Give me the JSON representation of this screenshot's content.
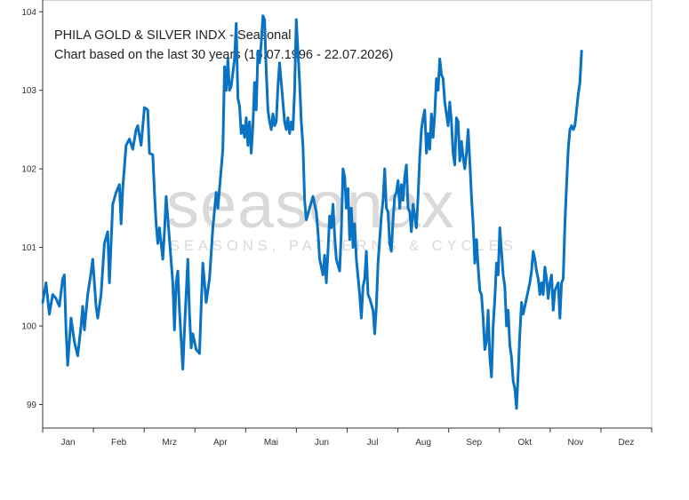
{
  "chart_data": {
    "type": "line",
    "title": "PHILA GOLD & SILVER INDX - Seasonal",
    "subtitle": "Chart based on the last 30 years (16.07.1996 - 22.07.2026)",
    "watermark": {
      "brand": "seasonax",
      "tagline": "SEASONS, PATTERNS & CYCLES"
    },
    "xlabel": "",
    "ylabel": "",
    "x_tick_labels": [
      "Jan",
      "Feb",
      "Mrz",
      "Apr",
      "Mai",
      "Jun",
      "Jul",
      "Aug",
      "Sep",
      "Okt",
      "Nov",
      "Dez"
    ],
    "y_ticks": [
      99,
      100,
      101,
      102,
      103,
      104
    ],
    "ylim": [
      98.7,
      104.15
    ],
    "xlim": [
      0,
      365
    ],
    "grid": false,
    "line_color": "#0a72c2",
    "series": [
      {
        "values": [
          [
            0,
            100.3
          ],
          [
            2,
            100.55
          ],
          [
            4,
            100.15
          ],
          [
            6,
            100.4
          ],
          [
            8,
            100.35
          ],
          [
            10,
            100.25
          ],
          [
            12,
            100.6
          ],
          [
            13,
            100.65
          ],
          [
            14,
            99.95
          ],
          [
            15,
            99.5
          ],
          [
            17,
            100.1
          ],
          [
            19,
            99.8
          ],
          [
            21,
            99.62
          ],
          [
            23,
            100.0
          ],
          [
            24,
            100.25
          ],
          [
            25,
            99.95
          ],
          [
            27,
            100.4
          ],
          [
            29,
            100.68
          ],
          [
            30,
            100.85
          ],
          [
            32,
            100.25
          ],
          [
            33,
            100.1
          ],
          [
            35,
            100.4
          ],
          [
            37,
            101.05
          ],
          [
            39,
            101.2
          ],
          [
            40,
            100.55
          ],
          [
            42,
            101.55
          ],
          [
            44,
            101.7
          ],
          [
            46,
            101.8
          ],
          [
            47,
            101.3
          ],
          [
            48,
            101.75
          ],
          [
            50,
            102.3
          ],
          [
            52,
            102.38
          ],
          [
            54,
            102.25
          ],
          [
            56,
            102.5
          ],
          [
            57,
            102.55
          ],
          [
            59,
            102.3
          ],
          [
            61,
            102.78
          ],
          [
            63,
            102.75
          ],
          [
            64,
            102.2
          ],
          [
            66,
            102.18
          ],
          [
            67,
            101.7
          ],
          [
            68,
            101.3
          ],
          [
            69,
            101.05
          ],
          [
            70,
            101.25
          ],
          [
            72,
            100.85
          ],
          [
            73,
            101.2
          ],
          [
            74,
            101.65
          ],
          [
            76,
            101.1
          ],
          [
            78,
            100.55
          ],
          [
            79,
            99.95
          ],
          [
            80,
            100.55
          ],
          [
            81,
            100.7
          ],
          [
            82,
            100.2
          ],
          [
            84,
            99.45
          ],
          [
            85,
            99.95
          ],
          [
            86,
            100.4
          ],
          [
            87,
            100.85
          ],
          [
            88,
            100.15
          ],
          [
            89,
            99.72
          ],
          [
            90,
            99.9
          ],
          [
            92,
            99.7
          ],
          [
            94,
            99.65
          ],
          [
            95,
            100.25
          ],
          [
            96,
            100.8
          ],
          [
            98,
            100.3
          ],
          [
            100,
            100.6
          ],
          [
            102,
            101.25
          ],
          [
            104,
            101.7
          ],
          [
            105,
            101.5
          ],
          [
            106,
            101.75
          ],
          [
            108,
            102.25
          ],
          [
            109,
            103.3
          ],
          [
            110,
            103.0
          ],
          [
            111,
            103.4
          ],
          [
            112,
            103.0
          ],
          [
            113,
            103.05
          ],
          [
            115,
            103.4
          ],
          [
            116,
            103.85
          ],
          [
            117,
            102.9
          ],
          [
            118,
            102.8
          ],
          [
            119,
            102.45
          ],
          [
            120,
            102.55
          ],
          [
            121,
            102.4
          ],
          [
            122,
            102.65
          ],
          [
            123,
            102.3
          ],
          [
            124,
            102.6
          ],
          [
            125,
            102.2
          ],
          [
            126,
            102.55
          ],
          [
            127,
            103.1
          ],
          [
            128,
            102.75
          ],
          [
            129,
            103.5
          ],
          [
            130,
            103.35
          ],
          [
            131,
            103.6
          ],
          [
            132,
            103.95
          ],
          [
            133,
            103.9
          ],
          [
            134,
            103.25
          ],
          [
            135,
            102.75
          ],
          [
            136,
            102.6
          ],
          [
            137,
            102.5
          ],
          [
            138,
            102.7
          ],
          [
            139,
            102.55
          ],
          [
            140,
            102.6
          ],
          [
            141,
            103.05
          ],
          [
            142,
            103.35
          ],
          [
            143,
            103.1
          ],
          [
            144,
            102.85
          ],
          [
            145,
            102.6
          ],
          [
            146,
            102.5
          ],
          [
            147,
            102.65
          ],
          [
            148,
            102.45
          ],
          [
            149,
            102.6
          ],
          [
            150,
            102.5
          ],
          [
            151,
            103.0
          ],
          [
            152,
            103.9
          ],
          [
            153,
            103.5
          ],
          [
            154,
            103.1
          ],
          [
            155,
            102.6
          ],
          [
            156,
            102.3
          ],
          [
            157,
            101.6
          ],
          [
            158,
            101.35
          ],
          [
            160,
            101.5
          ],
          [
            162,
            101.65
          ],
          [
            164,
            101.45
          ],
          [
            165,
            101.2
          ],
          [
            166,
            100.85
          ],
          [
            168,
            100.65
          ],
          [
            169,
            100.9
          ],
          [
            170,
            100.55
          ],
          [
            171,
            100.95
          ],
          [
            172,
            101.4
          ],
          [
            173,
            101.25
          ],
          [
            174,
            101.55
          ],
          [
            175,
            101.15
          ],
          [
            176,
            100.85
          ],
          [
            178,
            100.7
          ],
          [
            179,
            101.2
          ],
          [
            180,
            102.0
          ],
          [
            181,
            101.9
          ],
          [
            182,
            101.5
          ],
          [
            183,
            101.75
          ],
          [
            184,
            101.1
          ],
          [
            185,
            101.5
          ],
          [
            186,
            101.0
          ],
          [
            187,
            101.3
          ],
          [
            188,
            100.85
          ],
          [
            190,
            100.4
          ],
          [
            191,
            100.1
          ],
          [
            192,
            100.5
          ],
          [
            193,
            100.6
          ],
          [
            194,
            100.95
          ],
          [
            195,
            100.4
          ],
          [
            196,
            100.35
          ],
          [
            198,
            100.2
          ],
          [
            199,
            99.9
          ],
          [
            200,
            100.25
          ],
          [
            201,
            100.8
          ],
          [
            202,
            101.1
          ],
          [
            203,
            101.4
          ],
          [
            204,
            101.6
          ],
          [
            205,
            102.0
          ],
          [
            206,
            101.5
          ],
          [
            207,
            101.45
          ],
          [
            208,
            101.05
          ],
          [
            209,
            100.95
          ],
          [
            210,
            101.35
          ],
          [
            211,
            101.65
          ],
          [
            212,
            101.7
          ],
          [
            213,
            101.85
          ],
          [
            214,
            101.5
          ],
          [
            215,
            101.8
          ],
          [
            216,
            101.6
          ],
          [
            217,
            101.9
          ],
          [
            218,
            102.05
          ],
          [
            219,
            101.5
          ],
          [
            220,
            101.45
          ],
          [
            221,
            101.2
          ],
          [
            222,
            101.55
          ],
          [
            224,
            101.25
          ],
          [
            225,
            101.65
          ],
          [
            226,
            102.15
          ],
          [
            227,
            102.5
          ],
          [
            228,
            102.65
          ],
          [
            229,
            102.75
          ],
          [
            230,
            102.2
          ],
          [
            231,
            102.45
          ],
          [
            232,
            102.25
          ],
          [
            233,
            102.7
          ],
          [
            234,
            102.4
          ],
          [
            235,
            102.7
          ],
          [
            236,
            103.15
          ],
          [
            237,
            103.0
          ],
          [
            238,
            103.4
          ],
          [
            239,
            103.2
          ],
          [
            240,
            103.15
          ],
          [
            241,
            102.85
          ],
          [
            242,
            102.7
          ],
          [
            243,
            102.55
          ],
          [
            244,
            102.85
          ],
          [
            245,
            102.6
          ],
          [
            246,
            102.2
          ],
          [
            247,
            102.05
          ],
          [
            248,
            102.65
          ],
          [
            249,
            102.6
          ],
          [
            250,
            102.1
          ],
          [
            251,
            102.35
          ],
          [
            252,
            102.15
          ],
          [
            253,
            102.0
          ],
          [
            254,
            102.2
          ],
          [
            255,
            102.5
          ],
          [
            256,
            102.1
          ],
          [
            257,
            101.65
          ],
          [
            258,
            101.3
          ],
          [
            259,
            100.8
          ],
          [
            260,
            101.1
          ],
          [
            261,
            100.75
          ],
          [
            262,
            100.45
          ],
          [
            263,
            100.4
          ],
          [
            264,
            100.1
          ],
          [
            265,
            99.7
          ],
          [
            266,
            99.8
          ],
          [
            267,
            100.2
          ],
          [
            268,
            99.6
          ],
          [
            269,
            99.35
          ],
          [
            270,
            100.0
          ],
          [
            271,
            100.35
          ],
          [
            272,
            100.8
          ],
          [
            273,
            100.65
          ],
          [
            274,
            101.25
          ],
          [
            275,
            100.95
          ],
          [
            276,
            100.65
          ],
          [
            277,
            100.5
          ],
          [
            278,
            100.0
          ],
          [
            279,
            100.2
          ],
          [
            280,
            99.75
          ],
          [
            281,
            99.6
          ],
          [
            282,
            99.3
          ],
          [
            283,
            99.2
          ],
          [
            284,
            98.95
          ],
          [
            285,
            99.4
          ],
          [
            286,
            99.9
          ],
          [
            287,
            100.3
          ],
          [
            288,
            100.15
          ],
          [
            289,
            100.25
          ],
          [
            290,
            100.35
          ],
          [
            291,
            100.45
          ],
          [
            292,
            100.55
          ],
          [
            293,
            100.7
          ],
          [
            294,
            100.95
          ],
          [
            295,
            100.85
          ],
          [
            296,
            100.7
          ],
          [
            297,
            100.6
          ],
          [
            298,
            100.4
          ],
          [
            299,
            100.55
          ],
          [
            300,
            100.4
          ],
          [
            301,
            100.75
          ],
          [
            302,
            100.6
          ],
          [
            303,
            100.35
          ],
          [
            304,
            100.55
          ],
          [
            305,
            100.65
          ],
          [
            306,
            100.2
          ],
          [
            307,
            100.45
          ],
          [
            308,
            100.5
          ],
          [
            309,
            100.55
          ],
          [
            310,
            100.1
          ],
          [
            311,
            100.55
          ],
          [
            312,
            100.6
          ],
          [
            313,
            101.3
          ],
          [
            314,
            101.8
          ],
          [
            315,
            102.25
          ],
          [
            316,
            102.5
          ],
          [
            317,
            102.55
          ],
          [
            318,
            102.5
          ],
          [
            319,
            102.55
          ],
          [
            320,
            102.75
          ],
          [
            321,
            102.95
          ],
          [
            322,
            103.1
          ],
          [
            323,
            103.5
          ]
        ]
      }
    ]
  }
}
